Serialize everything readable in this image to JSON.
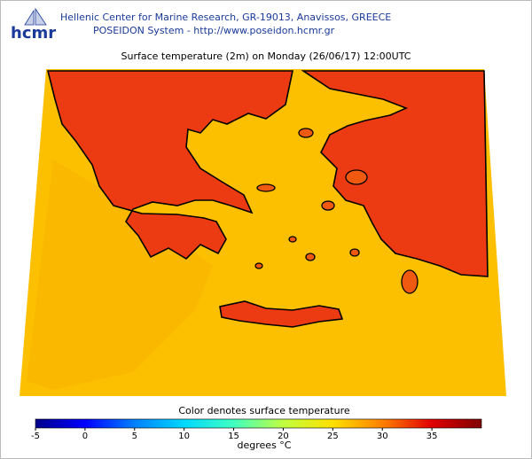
{
  "header": {
    "logo": "hcmr",
    "line1": "Hellenic Center for Marine Research, GR-19013, Anavissos, GREECE",
    "line2": "POSEIDON System - http://www.poseidon.hcmr.gr"
  },
  "map": {
    "title": "Surface temperature (2m) on Monday (26/06/17) 12:00UTC"
  },
  "colorbar": {
    "caption": "Color denotes surface temperature",
    "unit_label": "degrees °C",
    "lim": [
      -5,
      40
    ],
    "ticks": [
      -5,
      0,
      5,
      10,
      15,
      20,
      25,
      30,
      35
    ],
    "colors": [
      "#00008b",
      "#0000ff",
      "#0080ff",
      "#00d8ff",
      "#40ffc0",
      "#c0ff40",
      "#ffe000",
      "#ff8000",
      "#e00000",
      "#800000"
    ]
  }
}
